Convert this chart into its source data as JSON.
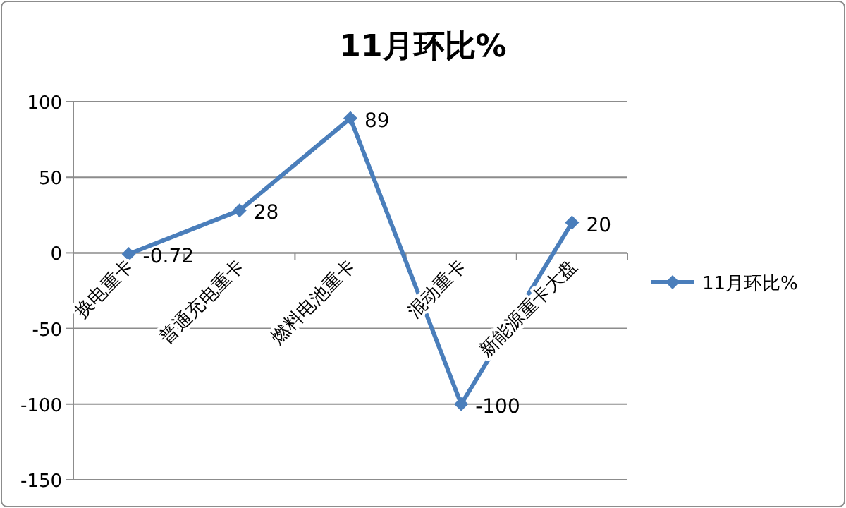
{
  "chart_data": {
    "type": "line",
    "title": "11月环比%",
    "categories": [
      "换电重卡",
      "普通充电重卡",
      "燃料电池重卡",
      "混动重卡",
      "新能源重卡大盘"
    ],
    "series": [
      {
        "name": "11月环比%",
        "color": "#4a7ebb",
        "values": [
          -0.72,
          28,
          89,
          -100,
          20
        ]
      }
    ],
    "ylim": [
      -150,
      100
    ],
    "yticks": [
      -150,
      -100,
      -50,
      0,
      50,
      100
    ],
    "grid": "y",
    "legend": "right",
    "marker": "diamond",
    "line_style": "solid",
    "data_labels": true
  }
}
